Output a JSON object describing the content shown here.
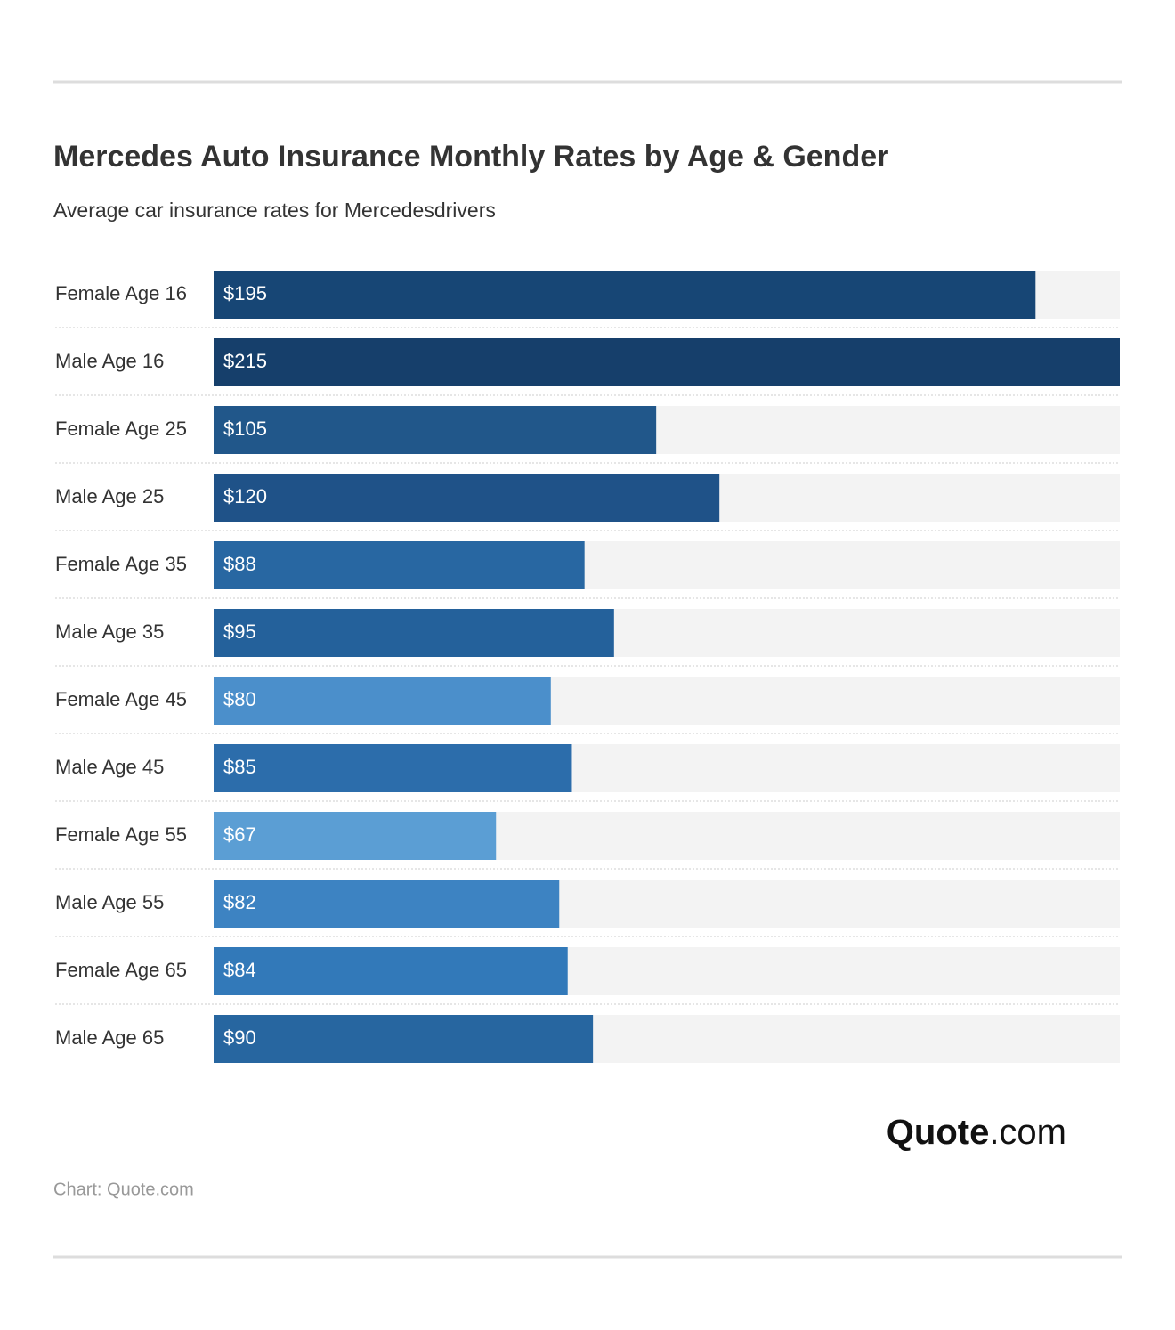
{
  "chart_data": {
    "type": "bar",
    "orientation": "horizontal",
    "title": "Mercedes Auto Insurance Monthly Rates by Age & Gender",
    "subtitle": "Average car insurance rates for Mercedesdrivers",
    "categories": [
      "Female Age 16",
      "Male Age 16",
      "Female Age 25",
      "Male Age 25",
      "Female Age 35",
      "Male Age 35",
      "Female Age 45",
      "Male Age 45",
      "Female Age 55",
      "Male Age 55",
      "Female Age 65",
      "Male Age 65"
    ],
    "values": [
      195,
      215,
      105,
      120,
      88,
      95,
      80,
      85,
      67,
      82,
      84,
      90
    ],
    "value_labels": [
      "$195",
      "$215",
      "$105",
      "$120",
      "$88",
      "$95",
      "$80",
      "$85",
      "$67",
      "$82",
      "$84",
      "$90"
    ],
    "colors": [
      "#174675",
      "#163f6b",
      "#21578a",
      "#1f5288",
      "#2867a2",
      "#24619b",
      "#4b8fcb",
      "#2c6dab",
      "#5b9ed4",
      "#3d83c2",
      "#3279b9",
      "#2766a0"
    ],
    "xlim": [
      0,
      215
    ],
    "logo": {
      "brand": "Quote",
      "suffix": ".com"
    },
    "source": "Chart: Quote.com"
  }
}
